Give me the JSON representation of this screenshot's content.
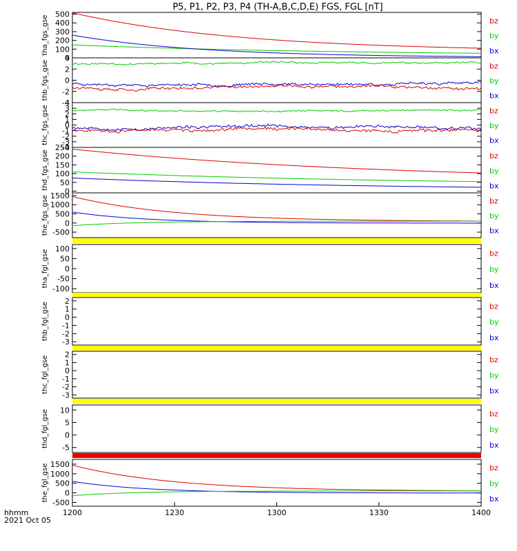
{
  "title": "P5, P1, P2, P3, P4 (TH-A,B,C,D,E) FGS, FGL [nT]",
  "x_axis": {
    "label": "hhmm",
    "date": "2021 Oct 05",
    "ticks": [
      "1200",
      "1230",
      "1300",
      "1330",
      "1400"
    ]
  },
  "colors": {
    "bx": "#0000cc",
    "by": "#00cc00",
    "bz": "#dd0000",
    "bar": "#ffff00",
    "bar_alt": "#ee0000"
  },
  "chart_data": [
    {
      "type": "line",
      "ylabel": "tha_fgs_gse",
      "ylim": [
        0,
        520
      ],
      "yticks": [
        "500",
        "400",
        "300",
        "200",
        "100",
        "0"
      ],
      "ytick_values": [
        500,
        400,
        300,
        200,
        100,
        0
      ],
      "legend": [
        "bz",
        "by",
        "bx"
      ],
      "series": [
        {
          "name": "bz",
          "color": "#dd0000",
          "model": "decay",
          "v0": 515,
          "v1": 70,
          "tau": 50
        },
        {
          "name": "by",
          "color": "#00cc00",
          "model": "decay",
          "v0": 148,
          "v1": 25,
          "tau": 80
        },
        {
          "name": "bx",
          "color": "#0000cc",
          "model": "decay",
          "v0": 260,
          "v1": 3,
          "tau": 38
        }
      ]
    },
    {
      "type": "line",
      "ylabel": "thb_fgs_gse",
      "ylim": [
        -4,
        4
      ],
      "yticks": [
        "4",
        "2",
        "0",
        "-2",
        "-4"
      ],
      "ytick_values": [
        4,
        2,
        0,
        -2,
        -4
      ],
      "legend": [
        "bz",
        "by",
        "bx"
      ],
      "series": [
        {
          "name": "by",
          "color": "#00cc00",
          "model": "noisy",
          "level": 3.0,
          "noise": 0.25,
          "seed": 11
        },
        {
          "name": "bx",
          "color": "#0000cc",
          "model": "noisy",
          "level": -0.6,
          "noise": 0.35,
          "seed": 23
        },
        {
          "name": "bz",
          "color": "#dd0000",
          "model": "noisy",
          "level": -1.2,
          "noise": 0.4,
          "seed": 37
        }
      ]
    },
    {
      "type": "line",
      "ylabel": "thc_fgs_gse",
      "ylim": [
        -4,
        4
      ],
      "yticks": [
        "4",
        "3",
        "2",
        "1",
        "0",
        "-1",
        "-2",
        "-3",
        "-4"
      ],
      "ytick_values": [
        4,
        3,
        2,
        1,
        0,
        -1,
        -2,
        -3,
        -4
      ],
      "legend": [
        "bz",
        "by",
        "bx"
      ],
      "series": [
        {
          "name": "by",
          "color": "#00cc00",
          "model": "noisy",
          "level": 2.6,
          "noise": 0.22,
          "seed": 41
        },
        {
          "name": "bx",
          "color": "#0000cc",
          "model": "noisy",
          "level": -0.4,
          "noise": 0.4,
          "seed": 53
        },
        {
          "name": "bz",
          "color": "#dd0000",
          "model": "noisy",
          "level": -0.8,
          "noise": 0.45,
          "seed": 67
        }
      ]
    },
    {
      "type": "line",
      "ylabel": "thd_fgs_gse",
      "ylim": [
        -10,
        250
      ],
      "yticks": [
        "250",
        "200",
        "150",
        "100",
        "50",
        "0"
      ],
      "ytick_values": [
        250,
        200,
        150,
        100,
        50,
        0
      ],
      "legend": [
        "bz",
        "by",
        "bx"
      ],
      "series": [
        {
          "name": "bz",
          "color": "#dd0000",
          "model": "decay",
          "v0": 240,
          "v1": 50,
          "tau": 95
        },
        {
          "name": "by",
          "color": "#00cc00",
          "model": "decay",
          "v0": 110,
          "v1": 30,
          "tau": 100
        },
        {
          "name": "bx",
          "color": "#0000cc",
          "model": "decay",
          "v0": 75,
          "v1": 5,
          "tau": 85
        }
      ]
    },
    {
      "type": "line",
      "ylabel": "the_fgs_gse",
      "ylim": [
        -800,
        1650
      ],
      "yticks": [
        "1500",
        "1000",
        "500",
        "0",
        "-500"
      ],
      "ytick_values": [
        1500,
        1000,
        500,
        0,
        -500
      ],
      "legend": [
        "bz",
        "by",
        "bx"
      ],
      "series": [
        {
          "name": "bz",
          "color": "#dd0000",
          "model": "decay",
          "v0": 1450,
          "v1": 80,
          "tau": 30
        },
        {
          "name": "bx",
          "color": "#0000cc",
          "model": "decay",
          "v0": 600,
          "v1": -10,
          "tau": 22
        },
        {
          "name": "by",
          "color": "#00cc00",
          "model": "rise",
          "v0": -150,
          "v1": 100,
          "tau": 18
        }
      ]
    },
    {
      "type": "line",
      "ylabel": "tha_fgl_gse",
      "ylim": [
        -120,
        120
      ],
      "yticks": [
        "100",
        "50",
        "0",
        "-50",
        "-100"
      ],
      "ytick_values": [
        100,
        50,
        0,
        -50,
        -100
      ],
      "legend": [
        "bz",
        "by",
        "bx"
      ],
      "series": []
    },
    {
      "type": "line",
      "ylabel": "thb_fgl_gse",
      "ylim": [
        -3.4,
        2.4
      ],
      "yticks": [
        "2",
        "1",
        "0",
        "-1",
        "-2",
        "-3"
      ],
      "ytick_values": [
        2,
        1,
        0,
        -1,
        -2,
        -3
      ],
      "legend": [
        "bz",
        "by",
        "bx"
      ],
      "series": []
    },
    {
      "type": "line",
      "ylabel": "thc_fgl_gse",
      "ylim": [
        -3.4,
        2.4
      ],
      "yticks": [
        "2",
        "1",
        "0",
        "-1",
        "-2",
        "-3"
      ],
      "ytick_values": [
        2,
        1,
        0,
        -1,
        -2,
        -3
      ],
      "legend": [
        "bz",
        "by",
        "bx"
      ],
      "series": []
    },
    {
      "type": "line",
      "ylabel": "thd_fgl_gse",
      "ylim": [
        -7,
        12
      ],
      "yticks": [
        "10",
        "5",
        "0",
        "-5"
      ],
      "ytick_values": [
        10,
        5,
        0,
        -5
      ],
      "legend": [
        "bz",
        "by",
        "bx"
      ],
      "series": []
    },
    {
      "type": "line",
      "ylabel": "the_fgl_gse",
      "ylim": [
        -700,
        1750
      ],
      "yticks": [
        "1500",
        "1000",
        "500",
        "0",
        "-500"
      ],
      "ytick_values": [
        1500,
        1000,
        500,
        0,
        -500
      ],
      "legend": [
        "bz",
        "by",
        "bx"
      ],
      "series": [
        {
          "name": "bz",
          "color": "#dd0000",
          "model": "decay",
          "v0": 1450,
          "v1": 80,
          "tau": 30
        },
        {
          "name": "bx",
          "color": "#0000cc",
          "model": "decay",
          "v0": 600,
          "v1": -10,
          "tau": 22
        },
        {
          "name": "by",
          "color": "#00cc00",
          "model": "rise",
          "v0": -150,
          "v1": 100,
          "tau": 18
        }
      ]
    }
  ]
}
